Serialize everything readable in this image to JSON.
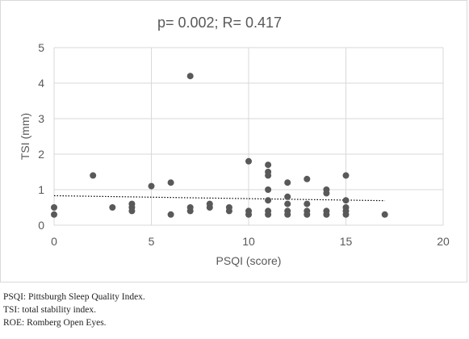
{
  "chart_data": {
    "type": "scatter",
    "title": "p= 0.002; R= 0.417",
    "xlabel": "PSQI (score)",
    "ylabel": "TSI (mm)",
    "xlim": [
      0,
      20
    ],
    "ylim": [
      0,
      5
    ],
    "x_ticks": [
      0,
      5,
      10,
      15,
      20
    ],
    "y_ticks": [
      0,
      1,
      2,
      3,
      4,
      5
    ],
    "grid": true,
    "trendline": {
      "style": "dotted",
      "x": [
        0,
        17
      ],
      "y": [
        0.83,
        0.69
      ]
    },
    "points": [
      [
        0,
        0.5
      ],
      [
        0,
        0.3
      ],
      [
        2,
        1.4
      ],
      [
        3,
        0.5
      ],
      [
        4,
        0.6
      ],
      [
        4,
        0.5
      ],
      [
        4,
        0.4
      ],
      [
        5,
        1.1
      ],
      [
        6,
        1.2
      ],
      [
        6,
        0.3
      ],
      [
        7,
        4.2
      ],
      [
        7,
        0.5
      ],
      [
        7,
        0.4
      ],
      [
        8,
        0.6
      ],
      [
        8,
        0.5
      ],
      [
        9,
        0.5
      ],
      [
        9,
        0.4
      ],
      [
        10,
        1.8
      ],
      [
        10,
        0.4
      ],
      [
        10,
        0.3
      ],
      [
        11,
        1.7
      ],
      [
        11,
        1.5
      ],
      [
        11,
        1.4
      ],
      [
        11,
        1.0
      ],
      [
        11,
        0.7
      ],
      [
        11,
        0.4
      ],
      [
        11,
        0.3
      ],
      [
        12,
        1.2
      ],
      [
        12,
        0.8
      ],
      [
        12,
        0.6
      ],
      [
        12,
        0.4
      ],
      [
        12,
        0.3
      ],
      [
        13,
        1.3
      ],
      [
        13,
        0.6
      ],
      [
        13,
        0.4
      ],
      [
        13,
        0.3
      ],
      [
        14,
        1.0
      ],
      [
        14,
        0.9
      ],
      [
        14,
        0.4
      ],
      [
        14,
        0.3
      ],
      [
        15,
        1.4
      ],
      [
        15,
        0.7
      ],
      [
        15,
        0.5
      ],
      [
        15,
        0.4
      ],
      [
        15,
        0.3
      ],
      [
        17,
        0.3
      ]
    ],
    "colors": {
      "marker": "#595959",
      "grid": "#d9d9d9",
      "text": "#595959",
      "trendline": "#000000"
    }
  },
  "notes": [
    "PSQI: Pittsburgh Sleep Quality Index.",
    "TSI: total stability index.",
    "ROE: Romberg Open Eyes."
  ]
}
